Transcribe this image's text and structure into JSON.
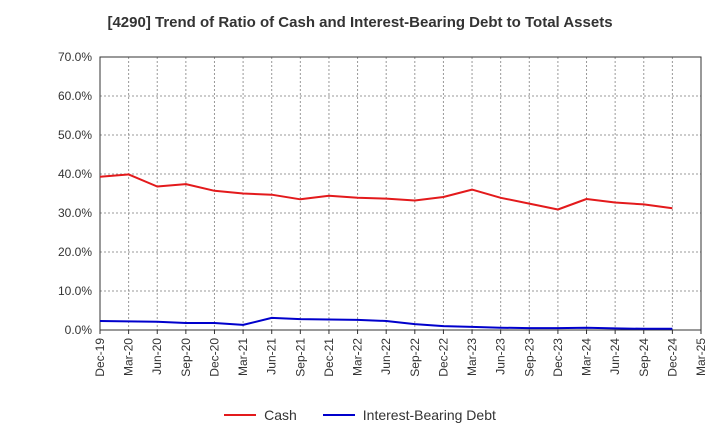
{
  "chart_data": {
    "type": "line",
    "title": "[4290]  Trend of Ratio of Cash and Interest-Bearing Debt to Total Assets",
    "xlabel": "",
    "ylabel": "",
    "categories": [
      "Dec-19",
      "Mar-20",
      "Jun-20",
      "Sep-20",
      "Dec-20",
      "Mar-21",
      "Jun-21",
      "Sep-21",
      "Dec-21",
      "Mar-22",
      "Jun-22",
      "Sep-22",
      "Dec-22",
      "Mar-23",
      "Jun-23",
      "Sep-23",
      "Dec-23",
      "Mar-24",
      "Jun-24",
      "Sep-24",
      "Dec-24",
      "Mar-25"
    ],
    "ylim": [
      0,
      70
    ],
    "yticks": [
      "0.0%",
      "10.0%",
      "20.0%",
      "30.0%",
      "40.0%",
      "50.0%",
      "60.0%",
      "70.0%"
    ],
    "grid": true,
    "legend_position": "bottom",
    "series": [
      {
        "name": "Cash",
        "color": "#e31a1c",
        "values": [
          39.3,
          39.9,
          36.8,
          37.4,
          35.7,
          35.0,
          34.7,
          33.5,
          34.4,
          33.9,
          33.7,
          33.2,
          34.1,
          36.0,
          33.9,
          32.4,
          30.9,
          33.6,
          32.7,
          32.2,
          31.2,
          null
        ]
      },
      {
        "name": "Interest-Bearing Debt",
        "color": "#0000cc",
        "values": [
          2.3,
          2.2,
          2.1,
          1.8,
          1.8,
          1.3,
          3.1,
          2.8,
          2.7,
          2.6,
          2.3,
          1.5,
          1.0,
          0.8,
          0.6,
          0.5,
          0.5,
          0.6,
          0.4,
          0.3,
          0.3,
          null
        ]
      }
    ]
  }
}
